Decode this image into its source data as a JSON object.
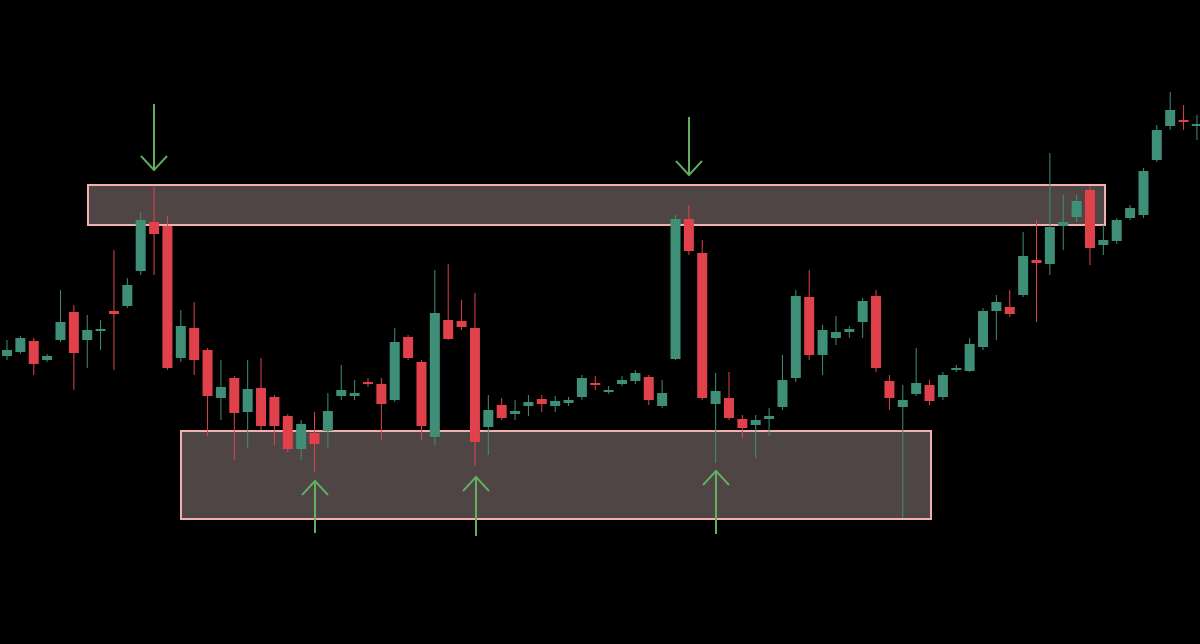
{
  "chart_data": {
    "type": "candlestick",
    "open": [
      288,
      292,
      303,
      284,
      304,
      332,
      304,
      313,
      333,
      338,
      373,
      422,
      418,
      286,
      316,
      294,
      246,
      266,
      232,
      256,
      247,
      228,
      195,
      211,
      213,
      248,
      248,
      262,
      260,
      244,
      307,
      282,
      207,
      324,
      323,
      316,
      217,
      239,
      230,
      238,
      245,
      238,
      241,
      247,
      261,
      252,
      260,
      263,
      267,
      238,
      285,
      425,
      391,
      240,
      246,
      225,
      219,
      225,
      237,
      266,
      347,
      289,
      306,
      312,
      322,
      348,
      263,
      237,
      250,
      259,
      247,
      274,
      273,
      297,
      333,
      337,
      349,
      384,
      380,
      418,
      427,
      454,
      399,
      403,
      426,
      429,
      484,
      518,
      524,
      518
    ],
    "high": [
      304,
      308,
      306,
      290,
      354,
      339,
      329,
      324,
      394,
      366,
      432,
      457,
      428,
      334,
      342,
      296,
      284,
      268,
      284,
      286,
      249,
      230,
      224,
      232,
      251,
      279,
      264,
      266,
      266,
      316,
      309,
      284,
      374,
      380,
      344,
      351,
      249,
      246,
      244,
      249,
      249,
      248,
      247,
      269,
      268,
      258,
      268,
      274,
      269,
      264,
      429,
      439,
      404,
      271,
      272,
      229,
      229,
      236,
      289,
      354,
      374,
      319,
      328,
      318,
      346,
      354,
      269,
      259,
      296,
      264,
      272,
      279,
      306,
      336,
      349,
      354,
      412,
      424,
      491,
      449,
      449,
      458,
      419,
      426,
      439,
      476,
      519,
      552,
      539,
      529
    ],
    "low": [
      284,
      290,
      269,
      282,
      302,
      254,
      276,
      294,
      274,
      336,
      369,
      369,
      274,
      282,
      269,
      208,
      224,
      184,
      196,
      214,
      199,
      192,
      184,
      172,
      196,
      244,
      244,
      257,
      204,
      242,
      284,
      204,
      199,
      304,
      314,
      178,
      189,
      224,
      224,
      228,
      232,
      232,
      238,
      244,
      254,
      250,
      258,
      260,
      239,
      236,
      284,
      389,
      244,
      181,
      224,
      206,
      186,
      208,
      234,
      262,
      284,
      269,
      299,
      306,
      306,
      272,
      234,
      126,
      248,
      239,
      244,
      272,
      272,
      294,
      304,
      327,
      347,
      322,
      369,
      394,
      422,
      379,
      389,
      400,
      424,
      426,
      482,
      514,
      514,
      504
    ],
    "close": [
      294,
      306,
      280,
      288,
      322,
      291,
      314,
      315,
      330,
      359,
      424,
      410,
      276,
      318,
      284,
      248,
      257,
      231,
      255,
      218,
      218,
      195,
      220,
      200,
      233,
      254,
      251,
      260,
      240,
      302,
      286,
      218,
      331,
      305,
      317,
      202,
      234,
      226,
      233,
      242,
      240,
      243,
      244,
      266,
      259,
      254,
      264,
      271,
      244,
      251,
      425,
      393,
      246,
      253,
      226,
      216,
      224,
      228,
      264,
      348,
      289,
      314,
      312,
      315,
      343,
      276,
      246,
      244,
      261,
      243,
      269,
      276,
      300,
      333,
      342,
      330,
      388,
      381,
      417,
      422,
      443,
      396,
      404,
      424,
      436,
      473,
      514,
      534,
      522,
      520
    ],
    "up_color": "#3f8e78",
    "down_color": "#e0414b",
    "ylim": [
      0,
      644
    ]
  }
}
